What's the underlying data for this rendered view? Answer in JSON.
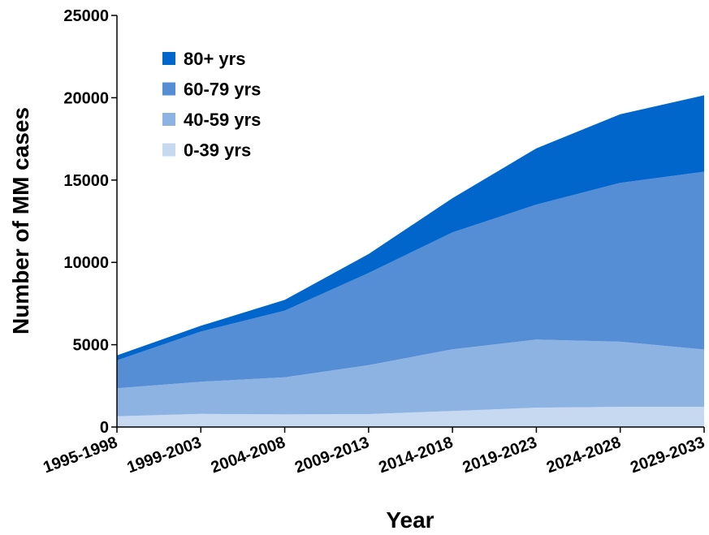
{
  "chart_data": {
    "type": "area",
    "stacked": true,
    "title": "",
    "xlabel": "Year",
    "ylabel": "Number of MM cases",
    "categories": [
      "1995-1998",
      "1999-2003",
      "2004-2008",
      "2009-2013",
      "2014-2018",
      "2019-2023",
      "2024-2028",
      "2029-2033"
    ],
    "ylim": [
      0,
      25000
    ],
    "yticks": [
      0,
      5000,
      10000,
      15000,
      20000,
      25000
    ],
    "grid": false,
    "legend_position": "top-left",
    "series": [
      {
        "name": "0-39 yrs",
        "color": "#c6d9f1",
        "values": [
          650,
          800,
          770,
          790,
          970,
          1180,
          1230,
          1230
        ]
      },
      {
        "name": "40-59 yrs",
        "color": "#8db3e2",
        "values": [
          1700,
          1950,
          2250,
          2970,
          3750,
          4130,
          3950,
          3480
        ]
      },
      {
        "name": "60-79 yrs",
        "color": "#558ed5",
        "values": [
          1700,
          3050,
          4050,
          5600,
          7100,
          8200,
          9650,
          10800
        ]
      },
      {
        "name": "80+ yrs",
        "color": "#0066cc",
        "values": [
          300,
          350,
          650,
          1150,
          2080,
          3420,
          4170,
          4640
        ]
      }
    ]
  }
}
